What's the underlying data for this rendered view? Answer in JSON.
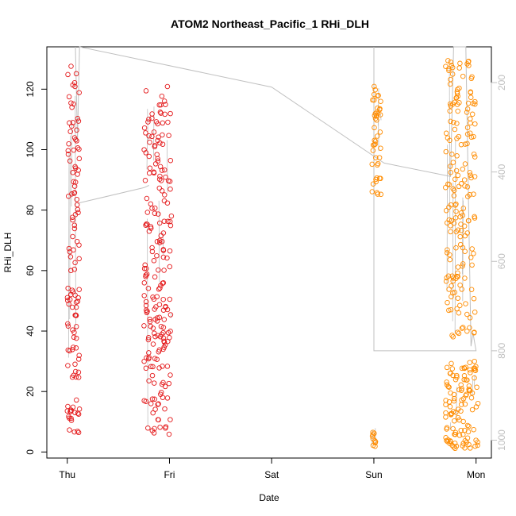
{
  "chart_data": {
    "type": "scatter",
    "title": "ATOM2 Northeast_Pacific_1 RHi_DLH",
    "xlabel": "Date",
    "ylabel": "RHi_DLH",
    "x_ticks": [
      "Thu",
      "Fri",
      "Sat",
      "Sun",
      "Mon"
    ],
    "xlim": [
      -0.2,
      4.15
    ],
    "ylim": [
      -2,
      134
    ],
    "y_ticks": [
      0,
      20,
      40,
      60,
      80,
      100,
      120
    ],
    "y2_ticks": [
      200,
      400,
      600,
      800,
      1000
    ],
    "y2lim": [
      120,
      1040
    ],
    "y2_reversed": true,
    "grid": false,
    "colors": {
      "day1": "#e41a1c",
      "day2": "#ff8c00",
      "pressure": "#c0c0c0",
      "axis": "#000000"
    },
    "clusters": [
      {
        "color": "#e41a1c",
        "x": [
          0.0,
          0.12
        ],
        "y": [
          2,
          130
        ],
        "n": 120,
        "seed": 11
      },
      {
        "color": "#e41a1c",
        "x": [
          0.75,
          1.02
        ],
        "y": [
          5,
          121
        ],
        "n": 210,
        "seed": 23
      },
      {
        "color": "#ff8c00",
        "x": [
          2.98,
          3.07
        ],
        "y": [
          85,
          121
        ],
        "n": 45,
        "seed": 37
      },
      {
        "color": "#ff8c00",
        "x": [
          2.98,
          3.02
        ],
        "y": [
          1,
          8
        ],
        "n": 10,
        "seed": 41
      },
      {
        "color": "#ff8c00",
        "x": [
          3.7,
          3.99
        ],
        "y": [
          38,
          130
        ],
        "n": 180,
        "seed": 53
      },
      {
        "color": "#ff8c00",
        "x": [
          3.7,
          4.02
        ],
        "y": [
          1,
          30
        ],
        "n": 110,
        "seed": 67
      }
    ],
    "pressure_series": [
      {
        "x": 0.08,
        "p": 120
      },
      {
        "x": 0.1,
        "p": 330
      },
      {
        "x": 0.12,
        "p": 120
      },
      {
        "x": 2.0,
        "p": 210
      },
      {
        "x": 3.1,
        "p": 380
      },
      {
        "x": 3.75,
        "p": 410
      },
      {
        "x": 3.78,
        "p": 120
      },
      {
        "x": 3.9,
        "p": 120
      },
      {
        "x": 3.95,
        "p": 790
      },
      {
        "x": 3.97,
        "p": 760
      },
      {
        "x": 4.0,
        "p": 800
      },
      {
        "x": 3.0,
        "p": 800
      },
      {
        "x": 3.0,
        "p": 120
      }
    ],
    "pressure_series_b": [
      {
        "x": 0.1,
        "p": 470
      },
      {
        "x": 0.75,
        "p": 435
      },
      {
        "x": 0.8,
        "p": 430
      }
    ]
  }
}
